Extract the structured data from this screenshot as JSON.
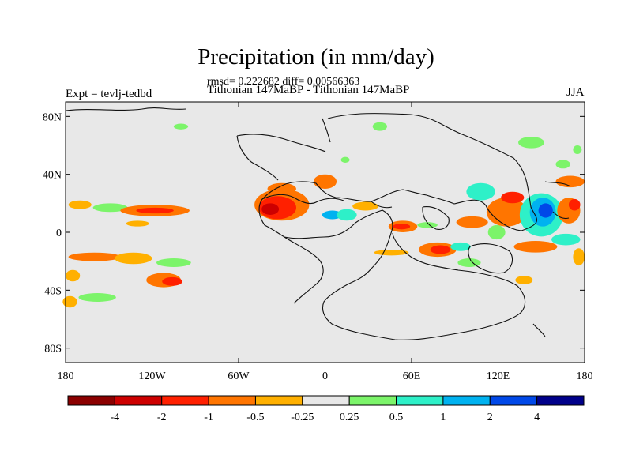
{
  "title": "Precipitation (in mm/day)",
  "stats": "rmsd= 0.222682 diff= 0.00566363",
  "subtitle": "Tithonian 147MaBP - Tithonian 147MaBP",
  "experiment": "Expt = tevlj-tedbd",
  "season": "JJA",
  "chart_data": {
    "type": "heatmap",
    "title": "Precipitation (in mm/day)",
    "projection": "cylindrical equidistant",
    "xlim": [
      -180,
      180
    ],
    "ylim": [
      -90,
      90
    ],
    "x_ticks": [
      {
        "value": -180,
        "label": "180"
      },
      {
        "value": -120,
        "label": "120W"
      },
      {
        "value": -60,
        "label": "60W"
      },
      {
        "value": 0,
        "label": "0"
      },
      {
        "value": 60,
        "label": "60E"
      },
      {
        "value": 120,
        "label": "120E"
      },
      {
        "value": 180,
        "label": "180"
      }
    ],
    "y_ticks": [
      {
        "value": 80,
        "label": "80N"
      },
      {
        "value": 40,
        "label": "40N"
      },
      {
        "value": 0,
        "label": "0"
      },
      {
        "value": -40,
        "label": "40S"
      },
      {
        "value": -80,
        "label": "80S"
      }
    ],
    "colorbar": {
      "labels": [
        "-4",
        "-2",
        "-1",
        "-0.5",
        "-0.25",
        "0.25",
        "0.5",
        "1",
        "2",
        "4"
      ],
      "colors": [
        "#8b0000",
        "#cd0000",
        "#ff2000",
        "#ff7500",
        "#ffb000",
        "#e8e8e8",
        "#7cf46a",
        "#2ef0c8",
        "#00b2f0",
        "#0048e8",
        "#00008a"
      ]
    },
    "anomaly_regions": [
      {
        "lon": -170,
        "lat": 19,
        "rx": 8,
        "ry": 3,
        "level": -0.25
      },
      {
        "lon": -149,
        "lat": 17,
        "rx": 12,
        "ry": 3,
        "level": 0.25
      },
      {
        "lon": -118,
        "lat": 15,
        "rx": 24,
        "ry": 4,
        "level": -0.5
      },
      {
        "lon": -118,
        "lat": 15,
        "rx": 13,
        "ry": 2,
        "level": -1
      },
      {
        "lon": -160,
        "lat": -17,
        "rx": 18,
        "ry": 3,
        "level": -0.5
      },
      {
        "lon": -133,
        "lat": -18,
        "rx": 13,
        "ry": 4,
        "level": -0.25
      },
      {
        "lon": -105,
        "lat": -21,
        "rx": 12,
        "ry": 3,
        "level": 0.25
      },
      {
        "lon": -112,
        "lat": -33,
        "rx": 12,
        "ry": 5,
        "level": -0.5
      },
      {
        "lon": -106,
        "lat": -34,
        "rx": 7,
        "ry": 3,
        "level": -1
      },
      {
        "lon": -175,
        "lat": -30,
        "rx": 5,
        "ry": 4,
        "level": -0.25
      },
      {
        "lon": -158,
        "lat": -45,
        "rx": 13,
        "ry": 3,
        "level": 0.25
      },
      {
        "lon": -177,
        "lat": -48,
        "rx": 5,
        "ry": 4,
        "level": -0.25
      },
      {
        "lon": -130,
        "lat": 6,
        "rx": 8,
        "ry": 2,
        "level": -0.25
      },
      {
        "lon": -30,
        "lat": 19,
        "rx": 19,
        "ry": 11,
        "level": -0.5
      },
      {
        "lon": -33,
        "lat": 17,
        "rx": 13,
        "ry": 8,
        "level": -1
      },
      {
        "lon": -38,
        "lat": 16,
        "rx": 6,
        "ry": 4,
        "level": -2
      },
      {
        "lon": -30,
        "lat": 30,
        "rx": 10,
        "ry": 4,
        "level": -0.5
      },
      {
        "lon": 0,
        "lat": 35,
        "rx": 8,
        "ry": 5,
        "level": -0.5
      },
      {
        "lon": 5,
        "lat": 12,
        "rx": 7,
        "ry": 3,
        "level": 1
      },
      {
        "lon": 15,
        "lat": 12,
        "rx": 7,
        "ry": 4,
        "level": 0.5
      },
      {
        "lon": 28,
        "lat": 18,
        "rx": 9,
        "ry": 3,
        "level": -0.25
      },
      {
        "lon": 14,
        "lat": 50,
        "rx": 3,
        "ry": 2,
        "level": 0.25
      },
      {
        "lon": 54,
        "lat": 4,
        "rx": 10,
        "ry": 4,
        "level": -0.5
      },
      {
        "lon": 53,
        "lat": 4,
        "rx": 6,
        "ry": 2,
        "level": -1
      },
      {
        "lon": 46,
        "lat": -14,
        "rx": 12,
        "ry": 2,
        "level": -0.25
      },
      {
        "lon": 78,
        "lat": -12,
        "rx": 13,
        "ry": 5,
        "level": -0.5
      },
      {
        "lon": 80,
        "lat": -12,
        "rx": 7,
        "ry": 3,
        "level": -1
      },
      {
        "lon": 71,
        "lat": 5,
        "rx": 7,
        "ry": 2,
        "level": 0.25
      },
      {
        "lon": 94,
        "lat": -10,
        "rx": 7,
        "ry": 3,
        "level": 0.5
      },
      {
        "lon": 100,
        "lat": -21,
        "rx": 8,
        "ry": 3,
        "level": 0.25
      },
      {
        "lon": 102,
        "lat": 7,
        "rx": 11,
        "ry": 4,
        "level": -0.5
      },
      {
        "lon": 119,
        "lat": 0,
        "rx": 6,
        "ry": 5,
        "level": 0.25
      },
      {
        "lon": 108,
        "lat": 28,
        "rx": 10,
        "ry": 6,
        "level": 0.5
      },
      {
        "lon": 126,
        "lat": 14,
        "rx": 14,
        "ry": 10,
        "level": -0.5
      },
      {
        "lon": 130,
        "lat": 24,
        "rx": 8,
        "ry": 4,
        "level": -1
      },
      {
        "lon": 150,
        "lat": 12,
        "rx": 15,
        "ry": 15,
        "level": 0.5
      },
      {
        "lon": 151,
        "lat": 14,
        "rx": 9,
        "ry": 10,
        "level": 1
      },
      {
        "lon": 153,
        "lat": 15,
        "rx": 5,
        "ry": 5,
        "level": 2
      },
      {
        "lon": 169,
        "lat": 15,
        "rx": 8,
        "ry": 9,
        "level": -0.5
      },
      {
        "lon": 173,
        "lat": 19,
        "rx": 4,
        "ry": 4,
        "level": -1
      },
      {
        "lon": 170,
        "lat": 35,
        "rx": 10,
        "ry": 4,
        "level": -0.5
      },
      {
        "lon": 167,
        "lat": -5,
        "rx": 10,
        "ry": 4,
        "level": 0.5
      },
      {
        "lon": 146,
        "lat": -10,
        "rx": 15,
        "ry": 4,
        "level": -0.5
      },
      {
        "lon": 176,
        "lat": -17,
        "rx": 4,
        "ry": 6,
        "level": -0.25
      },
      {
        "lon": 138,
        "lat": -33,
        "rx": 6,
        "ry": 3,
        "level": -0.25
      },
      {
        "lon": 143,
        "lat": 62,
        "rx": 9,
        "ry": 4,
        "level": 0.25
      },
      {
        "lon": 175,
        "lat": 57,
        "rx": 3,
        "ry": 3,
        "level": 0.25
      },
      {
        "lon": 165,
        "lat": 47,
        "rx": 5,
        "ry": 3,
        "level": 0.25
      },
      {
        "lon": 38,
        "lat": 73,
        "rx": 5,
        "ry": 3,
        "level": 0.25
      },
      {
        "lon": -100,
        "lat": 73,
        "rx": 5,
        "ry": 2,
        "level": 0.25
      }
    ]
  }
}
